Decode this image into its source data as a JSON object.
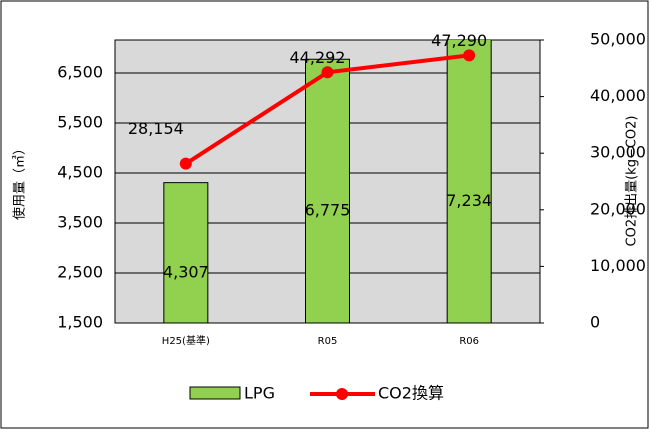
{
  "chart_data": {
    "type": "bar-line",
    "categories": [
      "H25(基準)",
      "R05",
      "R06"
    ],
    "series": [
      {
        "name": "LPG",
        "color": "#92d050",
        "values": [
          4307,
          6775,
          7234
        ],
        "value_labels": [
          "4,307",
          "6,775",
          "7,234"
        ]
      },
      {
        "name": "CO2換算",
        "color": "#ff0000",
        "axis": "y2",
        "values": [
          28154,
          44292,
          47290
        ],
        "value_labels": [
          "28,154",
          "44,292",
          "47,290"
        ]
      }
    ],
    "ylabel": "使用量（㎥）",
    "y2label": "CO2排出量(kg−CO2)",
    "ylim": [
      1500,
      7160
    ],
    "yticks": [
      {
        "value": 1500,
        "label": "1,500"
      },
      {
        "value": 2500,
        "label": "2,500"
      },
      {
        "value": 3500,
        "label": "3,500"
      },
      {
        "value": 4500,
        "label": "4,500"
      },
      {
        "value": 5500,
        "label": "5,500"
      },
      {
        "value": 6500,
        "label": "6,500"
      }
    ],
    "y2lim": [
      0,
      50000
    ],
    "y2ticks": [
      0,
      {
        "value": 10000,
        "label": "10,000"
      },
      {
        "value": 20000,
        "label": "20,000"
      },
      {
        "value": 30000,
        "label": "30,000"
      },
      {
        "value": 40000,
        "label": "40,000"
      },
      {
        "value": 50000,
        "label": "50,000"
      }
    ],
    "grid": true
  }
}
